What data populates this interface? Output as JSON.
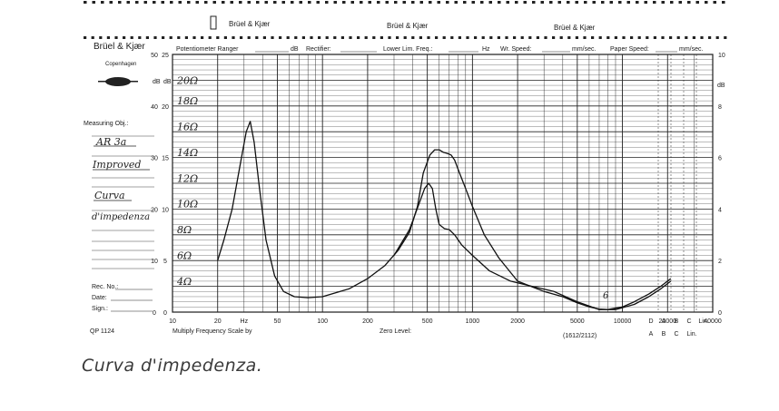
{
  "header": {
    "brand_small": "Brüel & Kjær",
    "brand_main": "Brüel & Kjær",
    "brand_city": "Copenhagen",
    "potentiometer_label": "Potentiometer Ranger",
    "db_label": "dB",
    "rectifier_label": "Rectifier:",
    "lower_lim_label": "Lower Lim. Freq.:",
    "hz_label": "Hz",
    "wr_speed_label": "Wr. Speed:",
    "mm_sec_label": "mm/sec.",
    "paper_speed_label": "Paper Speed:",
    "mm_sec_label2": "mm/sec."
  },
  "form": {
    "measuring_label": "Measuring Obj.:",
    "handwritten_lines": [
      "AR 3a",
      "Improved",
      "Curva",
      "d'impedenza"
    ],
    "rec_no_label": "Rec. No.:",
    "date_label": "Date:",
    "sign_label": "Sign.:",
    "qp_label": "QP 1124"
  },
  "footer": {
    "multiply_label": "Multiply Frequency Scale by",
    "zero_level_label": "Zero Level:",
    "code_label": "(1612/2112)"
  },
  "caption": "Curva d'impedenza.",
  "chart_data": {
    "type": "line",
    "title": "",
    "xlabel": "Hz",
    "ylabel": "dB",
    "x_scale": "log",
    "xlim": [
      10,
      40000
    ],
    "ylim": [
      0,
      50
    ],
    "grid": true,
    "x_ticks": [
      "10",
      "20",
      "Hz",
      "50",
      "100",
      "200",
      "500",
      "1000",
      "2000",
      "5000",
      "10000",
      "20000",
      "40000"
    ],
    "x_tick_values": [
      10,
      20,
      30,
      50,
      100,
      200,
      500,
      1000,
      2000,
      5000,
      10000,
      20000,
      40000
    ],
    "y_ticks_outer": [
      "50",
      "40",
      "30",
      "20",
      "10",
      "0"
    ],
    "y_ticks_outer_values": [
      50,
      40,
      30,
      20,
      10,
      0
    ],
    "y_ticks_inner": [
      "25",
      "20",
      "15",
      "10",
      "5",
      "0"
    ],
    "y_ticks_inner_values": [
      50,
      40,
      30,
      20,
      10,
      0
    ],
    "y_label_outer": "dB",
    "y_label_inner": "dB",
    "right_scale_ticks": [
      "10",
      "8",
      "6",
      "4",
      "2",
      "0"
    ],
    "right_scale_values": [
      50,
      40,
      30,
      20,
      10,
      0
    ],
    "right_scale_label": "dB",
    "ohm_labels": [
      "20Ω",
      "18Ω",
      "16Ω",
      "14Ω",
      "12Ω",
      "10Ω",
      "8Ω",
      "6Ω",
      "4Ω"
    ],
    "ohm_label_values": [
      45,
      41,
      36,
      31,
      26,
      21,
      16,
      11,
      6
    ],
    "extra_scale_top": [
      "D",
      "A",
      "B",
      "C",
      "Lin."
    ],
    "extra_scale_bottom": [
      "A",
      "B",
      "C",
      "Lin."
    ],
    "annotation": "6",
    "series": [
      {
        "name": "",
        "x": [
          20,
          22,
          25,
          28,
          31,
          33,
          35,
          38,
          42,
          48,
          55,
          65,
          80,
          100,
          150,
          200,
          260,
          320,
          380,
          430,
          470,
          520,
          560,
          600,
          640,
          680,
          720,
          760,
          820,
          900,
          1000,
          1200,
          1500,
          2000,
          3000,
          4000,
          5000,
          6000,
          7000,
          8000,
          10000,
          12000,
          15000,
          18000,
          21000
        ],
        "y": [
          10,
          14,
          20,
          28,
          35,
          37,
          33,
          24,
          14,
          7,
          4,
          3,
          2.8,
          3,
          4.5,
          6.5,
          9,
          12,
          15.5,
          20.5,
          27,
          30.5,
          31.5,
          31.5,
          31,
          30.8,
          30.5,
          29.5,
          27,
          24,
          20.5,
          15,
          10.5,
          6,
          4,
          3,
          1.8,
          1,
          0.6,
          0.5,
          1,
          2,
          3.5,
          5,
          6.5
        ]
      },
      {
        "name": "",
        "x": [
          300,
          380,
          440,
          480,
          510,
          540,
          570,
          600,
          650,
          700,
          760,
          850,
          1000,
          1300,
          1800,
          2500,
          3500,
          5000,
          7000,
          9000,
          12000,
          15000,
          18000,
          21000
        ],
        "y": [
          11,
          16,
          21,
          24,
          25,
          24,
          20,
          17,
          16.2,
          16,
          15,
          13,
          11,
          8,
          6,
          5,
          4,
          2,
          0.5,
          0.5,
          1.5,
          3,
          4.5,
          6
        ]
      }
    ]
  }
}
